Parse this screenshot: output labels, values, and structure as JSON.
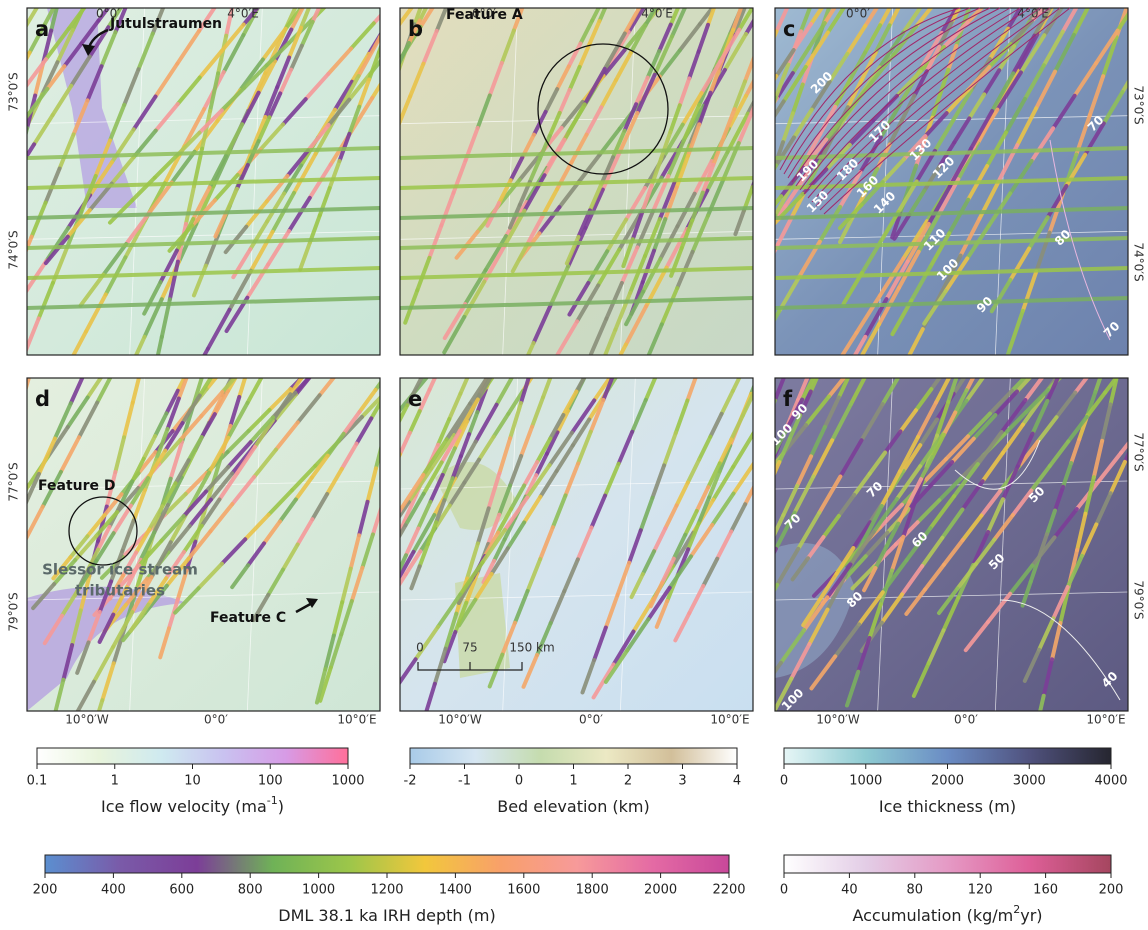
{
  "axes": {
    "top": [
      "0°0′",
      "4°0′E"
    ],
    "lat_north": [
      "73°0′S",
      "74°0′S"
    ],
    "lat_south": [
      "77°0′S",
      "79°0′S"
    ],
    "bottom": [
      "10°0′W",
      "0°0′",
      "10°0′E"
    ]
  },
  "panels": [
    {
      "letter": "a",
      "annotations": [
        "Jutulstraumen"
      ]
    },
    {
      "letter": "b",
      "annotations": [
        "Feature A"
      ]
    },
    {
      "letter": "c",
      "contours": [
        200,
        170,
        190,
        180,
        160,
        150,
        140,
        130,
        120,
        110,
        100,
        90,
        80,
        70,
        70
      ]
    },
    {
      "letter": "d",
      "annotations": [
        "Feature D",
        "Slessor ice stream",
        "tributaries",
        "Feature C"
      ]
    },
    {
      "letter": "e",
      "scale_bar": [
        "0",
        "75",
        "150 km"
      ]
    },
    {
      "letter": "f",
      "contours": [
        90,
        100,
        70,
        70,
        60,
        50,
        50,
        80,
        100,
        40
      ]
    }
  ],
  "colorbars": [
    {
      "title": "Ice flow velocity (ma",
      "title_sup": "-1",
      "title_end": ")",
      "ticks": [
        0.1,
        1,
        10,
        100,
        1000
      ],
      "scale": "log",
      "colors": [
        "#ffffff",
        "#e8f4dc",
        "#cfeaf0",
        "#c9c2f0",
        "#d79be6",
        "#ff6f9a"
      ]
    },
    {
      "title": "Bed elevation (km)",
      "ticks": [
        -2,
        -1,
        0,
        1,
        2,
        3,
        4
      ],
      "scale": "linear",
      "colors": [
        "#a9cbe8",
        "#d6e6f2",
        "#c5dcae",
        "#ece9c4",
        "#d2bf9a",
        "#ffffff"
      ]
    },
    {
      "title": "Ice thickness (m)",
      "ticks": [
        0,
        1000,
        2000,
        3000,
        4000
      ],
      "scale": "linear",
      "colors": [
        "#e6f6f6",
        "#8ecbd2",
        "#6a8cc4",
        "#50527e",
        "#262630"
      ]
    },
    {
      "title": "DML 38.1 ka IRH depth (m)",
      "ticks": [
        200,
        400,
        600,
        800,
        1000,
        1200,
        1400,
        1600,
        1800,
        2000,
        2200
      ],
      "scale": "linear",
      "colors": [
        "#5b8fd0",
        "#7a5aa8",
        "#7c3e98",
        "#6fb257",
        "#9cc64a",
        "#f2c73c",
        "#f8a06a",
        "#f79a9a",
        "#e46aa4",
        "#c8489a"
      ]
    },
    {
      "title": "Accumulation (kg/m",
      "title_sup": "2",
      "title_end": "yr)",
      "ticks": [
        0,
        40,
        80,
        120,
        160,
        200
      ],
      "scale": "linear",
      "colors": [
        "#ffffff",
        "#e3cde6",
        "#e59ac5",
        "#de5f98",
        "#a5465f"
      ]
    }
  ]
}
